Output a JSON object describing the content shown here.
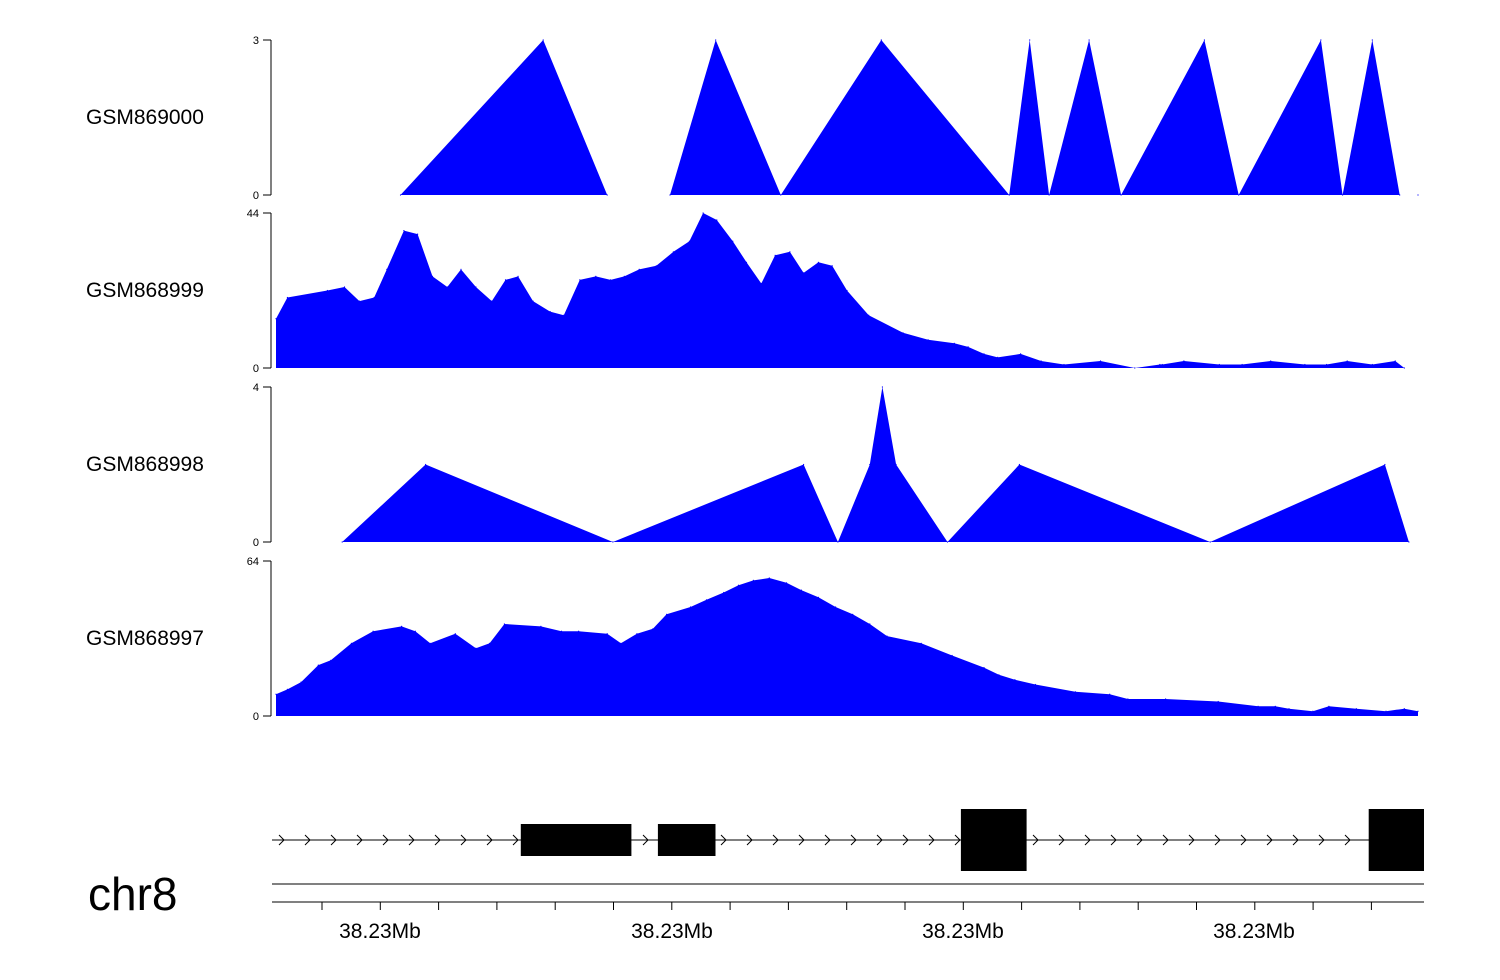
{
  "colors": {
    "track_fill": "#0000ff",
    "gene": "#000000",
    "axis": "#000000"
  },
  "chart_data": {
    "type": "area",
    "tracks": [
      {
        "name": "GSM869000",
        "ylim": [
          0,
          3
        ],
        "tick_labels": [
          "3",
          "0"
        ],
        "x": [
          0.109,
          0.234,
          0.29,
          0.345,
          0.385,
          0.442,
          0.53,
          0.642,
          0.66,
          0.677,
          0.712,
          0.74,
          0.813,
          0.843,
          0.915,
          0.934,
          0.96,
          0.984,
          1.0
        ],
        "values": [
          0,
          3,
          0,
          0,
          3,
          0,
          3,
          0,
          3,
          0,
          3,
          0,
          3,
          0,
          3,
          0,
          3,
          0,
          0
        ]
      },
      {
        "name": "GSM868999",
        "ylim": [
          0,
          44
        ],
        "tick_labels": [
          "44",
          "0"
        ],
        "x": [
          0.0,
          0.01,
          0.045,
          0.06,
          0.073,
          0.086,
          0.097,
          0.112,
          0.124,
          0.137,
          0.15,
          0.162,
          0.175,
          0.189,
          0.201,
          0.212,
          0.225,
          0.24,
          0.252,
          0.266,
          0.28,
          0.293,
          0.305,
          0.318,
          0.333,
          0.348,
          0.362,
          0.374,
          0.386,
          0.4,
          0.412,
          0.425,
          0.437,
          0.45,
          0.462,
          0.475,
          0.487,
          0.5,
          0.519,
          0.549,
          0.571,
          0.594,
          0.606,
          0.62,
          0.632,
          0.652,
          0.67,
          0.69,
          0.722,
          0.752,
          0.774,
          0.776,
          0.795,
          0.826,
          0.846,
          0.871,
          0.901,
          0.92,
          0.938,
          0.96,
          0.98,
          0.988
        ],
        "values": [
          14,
          20,
          22,
          23,
          19,
          20,
          28,
          39,
          38,
          26,
          23,
          28,
          23,
          19,
          25,
          26,
          19,
          16,
          15,
          25,
          26,
          25,
          26,
          28,
          29,
          33,
          36,
          44,
          42,
          36,
          30,
          24,
          32,
          33,
          27,
          30,
          29,
          22,
          15,
          10,
          8,
          7,
          6,
          4,
          3,
          4,
          2,
          1,
          2,
          0,
          1,
          1,
          2,
          1,
          1,
          2,
          1,
          1,
          2,
          1,
          2,
          0
        ]
      },
      {
        "name": "GSM868998",
        "ylim": [
          0,
          4
        ],
        "tick_labels": [
          "4",
          "0"
        ],
        "x": [
          0.058,
          0.131,
          0.295,
          0.462,
          0.492,
          0.52,
          0.531,
          0.543,
          0.588,
          0.651,
          0.818,
          0.971,
          0.992
        ],
        "values": [
          0,
          2,
          0,
          2,
          0,
          2,
          4,
          2,
          0,
          2,
          0,
          2,
          0
        ]
      },
      {
        "name": "GSM868997",
        "ylim": [
          0,
          64
        ],
        "tick_labels": [
          "64",
          "0"
        ],
        "x": [
          0.0,
          0.01,
          0.022,
          0.037,
          0.048,
          0.066,
          0.085,
          0.11,
          0.122,
          0.135,
          0.157,
          0.175,
          0.187,
          0.2,
          0.232,
          0.25,
          0.265,
          0.29,
          0.302,
          0.316,
          0.33,
          0.342,
          0.363,
          0.377,
          0.392,
          0.405,
          0.418,
          0.432,
          0.447,
          0.46,
          0.475,
          0.49,
          0.505,
          0.52,
          0.535,
          0.565,
          0.592,
          0.62,
          0.633,
          0.647,
          0.665,
          0.7,
          0.73,
          0.746,
          0.779,
          0.825,
          0.86,
          0.875,
          0.887,
          0.908,
          0.922,
          0.946,
          0.972,
          0.988,
          1.0
        ],
        "values": [
          9,
          11,
          14,
          21,
          23,
          30,
          35,
          37,
          35,
          30,
          34,
          28,
          30,
          38,
          37,
          35,
          35,
          34,
          30,
          34,
          36,
          42,
          45,
          48,
          51,
          54,
          56,
          57,
          55,
          52,
          49,
          45,
          42,
          38,
          33,
          30,
          25,
          20,
          17,
          15,
          13,
          10,
          9,
          7,
          7,
          6,
          4,
          4,
          3,
          2,
          4,
          3,
          2,
          3,
          2
        ]
      }
    ],
    "chromosome": "chr8",
    "x_tick_labels": [
      "38.23Mb",
      "38.23Mb",
      "38.23Mb",
      "38.23Mb"
    ],
    "gene_model": {
      "strand": "+",
      "exons": [
        {
          "start": 0.216,
          "end": 0.312,
          "kind": "utr"
        },
        {
          "start": 0.335,
          "end": 0.385,
          "kind": "utr"
        },
        {
          "start": 0.598,
          "end": 0.655,
          "kind": "cds"
        },
        {
          "start": 0.952,
          "end": 1.0,
          "kind": "cds"
        }
      ]
    }
  }
}
